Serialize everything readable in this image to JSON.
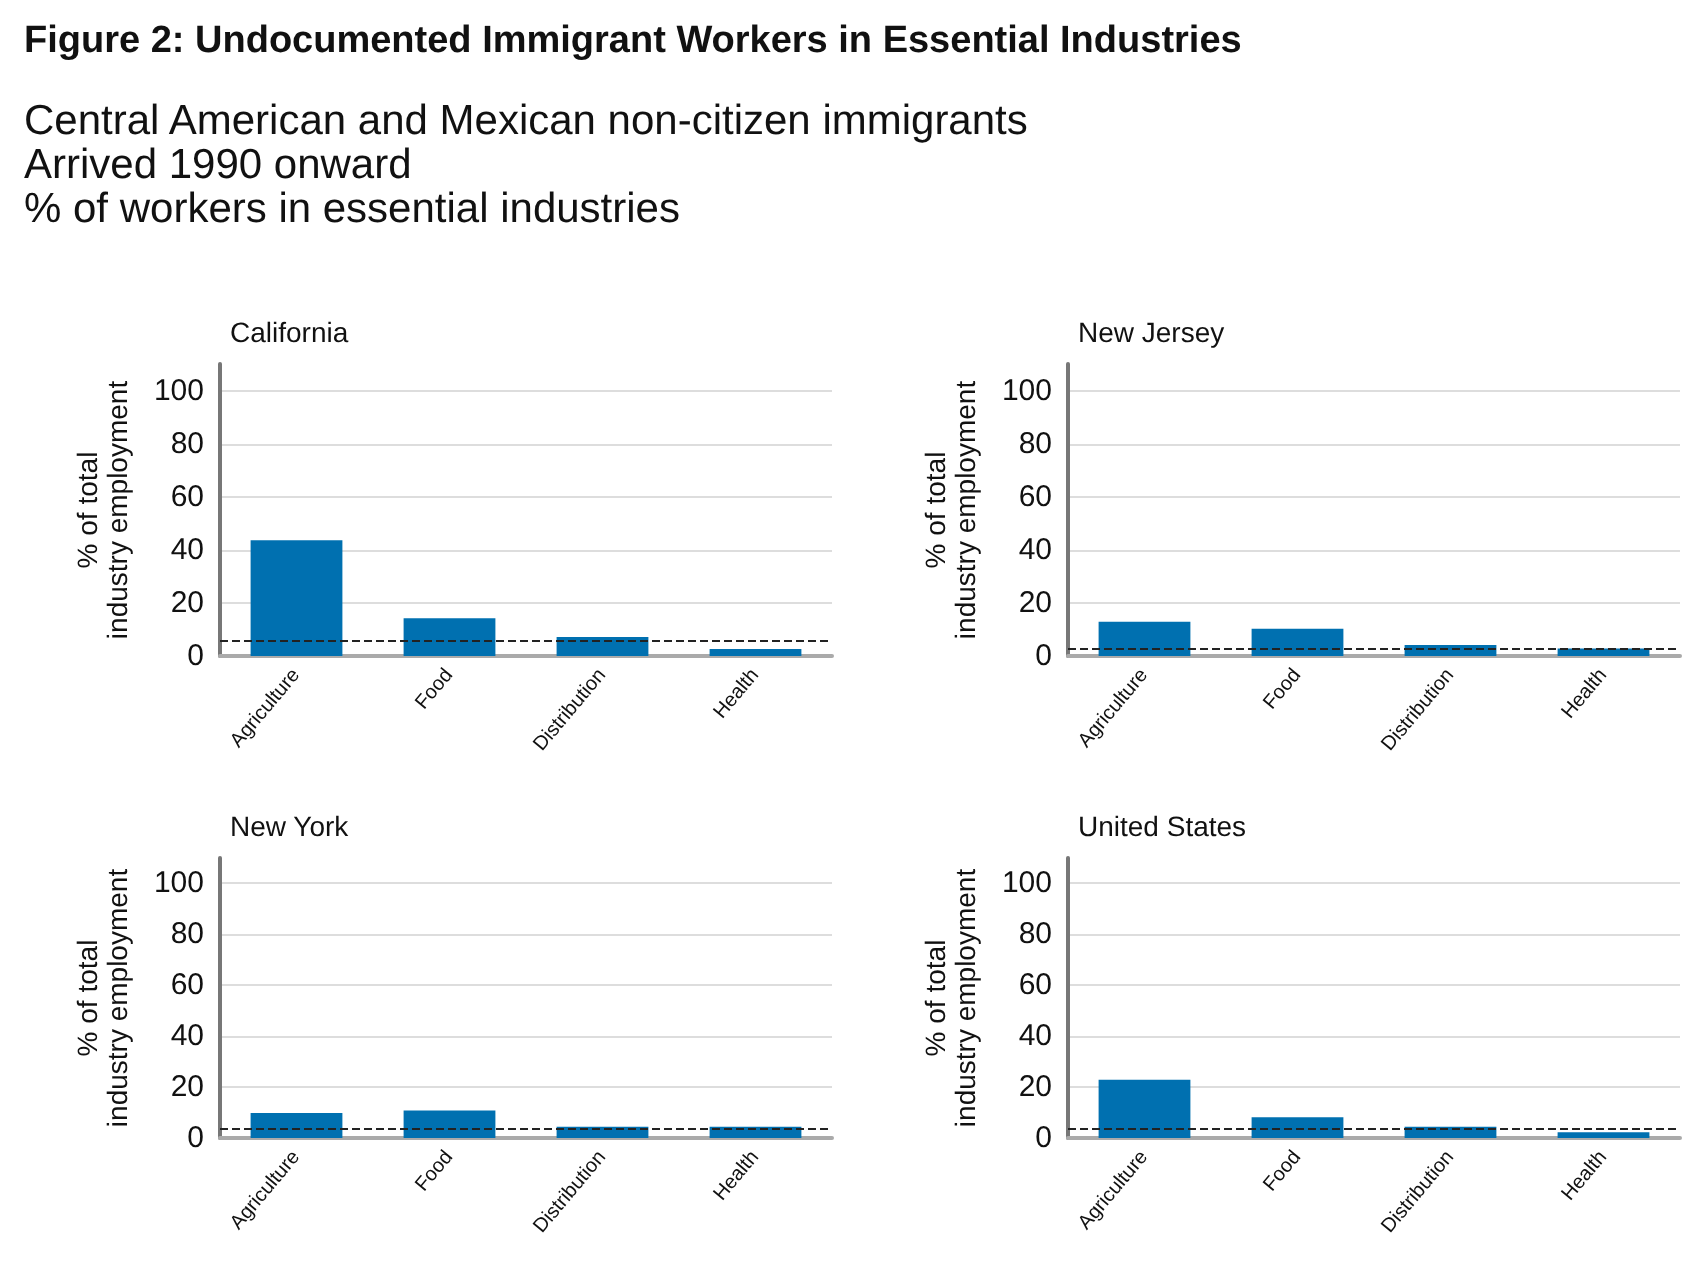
{
  "chart_data": [
    {
      "type": "other",
      "title": "Figure 2: Undocumented Immigrant Workers in Essential Industries",
      "subtitle": "Central American and Mexican non-citizen immigrants\nArrived 1990 onward\n% of workers in essential industries"
    },
    {
      "type": "bar",
      "title": "California",
      "ylabel": "% of total\nindustry employment",
      "categories": [
        "Agriculture",
        "Food",
        "Distribution",
        "Health"
      ],
      "values": [
        43.6,
        14.2,
        7.2,
        2.6
      ],
      "color": "#0070b0",
      "ylim": [
        0,
        110
      ],
      "yticks": [
        0,
        20,
        40,
        60,
        80,
        100
      ],
      "grid": "y",
      "ref_lines": [
        {
          "axis": "y",
          "value": 5.7,
          "line_style": "dashed",
          "color": "#222222"
        }
      ]
    },
    {
      "type": "bar",
      "title": "New Jersey",
      "ylabel": "% of total\nindustry employment",
      "categories": [
        "Agriculture",
        "Food",
        "Distribution",
        "Health"
      ],
      "values": [
        12.9,
        10.3,
        4.1,
        2.8
      ],
      "color": "#0070b0",
      "ylim": [
        0,
        110
      ],
      "yticks": [
        0,
        20,
        40,
        60,
        80,
        100
      ],
      "grid": "y",
      "ref_lines": [
        {
          "axis": "y",
          "value": 3.1,
          "line_style": "dashed",
          "color": "#222222"
        }
      ]
    },
    {
      "type": "bar",
      "title": "New York",
      "ylabel": "% of total\nindustry employment",
      "categories": [
        "Agriculture",
        "Food",
        "Distribution",
        "Health"
      ],
      "values": [
        9.8,
        10.8,
        4.4,
        4.4
      ],
      "color": "#0070b0",
      "ylim": [
        0,
        110
      ],
      "yticks": [
        0,
        20,
        40,
        60,
        80,
        100
      ],
      "grid": "y",
      "ref_lines": [
        {
          "axis": "y",
          "value": 3.4,
          "line_style": "dashed",
          "color": "#222222"
        }
      ]
    },
    {
      "type": "bar",
      "title": "United States",
      "ylabel": "% of total\nindustry employment",
      "categories": [
        "Agriculture",
        "Food",
        "Distribution",
        "Health"
      ],
      "values": [
        22.9,
        8.2,
        4.4,
        2.3
      ],
      "color": "#0070b0",
      "ylim": [
        0,
        110
      ],
      "yticks": [
        0,
        20,
        40,
        60,
        80,
        100
      ],
      "grid": "y",
      "ref_lines": [
        {
          "axis": "y",
          "value": 3.4,
          "line_style": "dashed",
          "color": "#222222"
        }
      ]
    }
  ]
}
